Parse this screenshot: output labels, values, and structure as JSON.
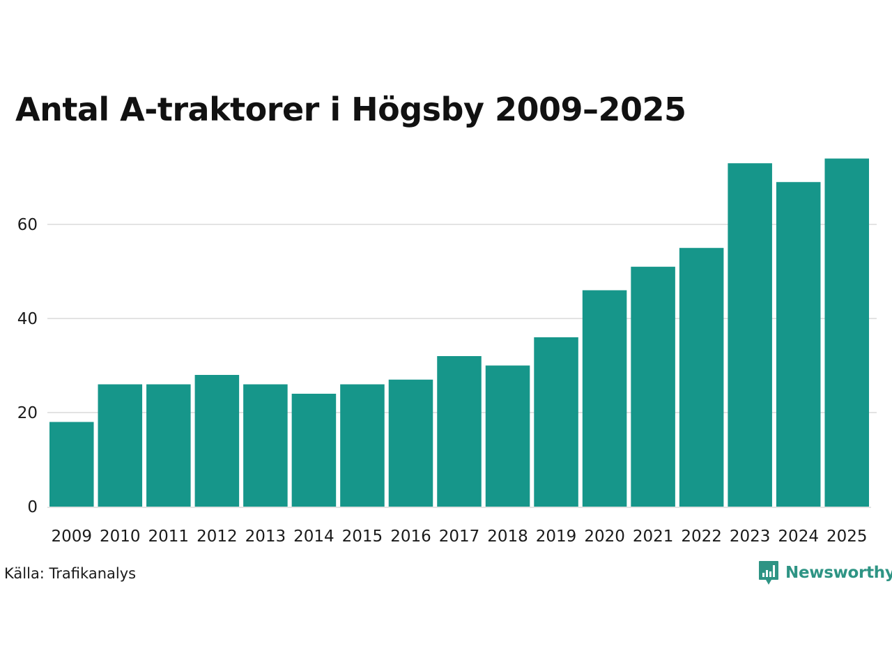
{
  "colors": {
    "bar": "#16968a",
    "grid": "#e3e3e3",
    "brand": "#2e9484"
  },
  "chart_data": {
    "type": "bar",
    "title": "Antal A-traktorer i Högsby 2009–2025",
    "xlabel": "",
    "ylabel": "",
    "categories": [
      "2009",
      "2010",
      "2011",
      "2012",
      "2013",
      "2014",
      "2015",
      "2016",
      "2017",
      "2018",
      "2019",
      "2020",
      "2021",
      "2022",
      "2023",
      "2024",
      "2025"
    ],
    "values": [
      18,
      26,
      26,
      28,
      26,
      24,
      26,
      27,
      32,
      30,
      36,
      46,
      51,
      55,
      73,
      69,
      74
    ],
    "ylim": [
      0,
      74
    ],
    "yticks": [
      0,
      20,
      40,
      60
    ],
    "grid": true,
    "legend": "none"
  },
  "source": {
    "text": "Källa: Trafikanalys"
  },
  "brand": {
    "name": "Newsworthy",
    "icon": "newsworthy-logo-icon"
  }
}
